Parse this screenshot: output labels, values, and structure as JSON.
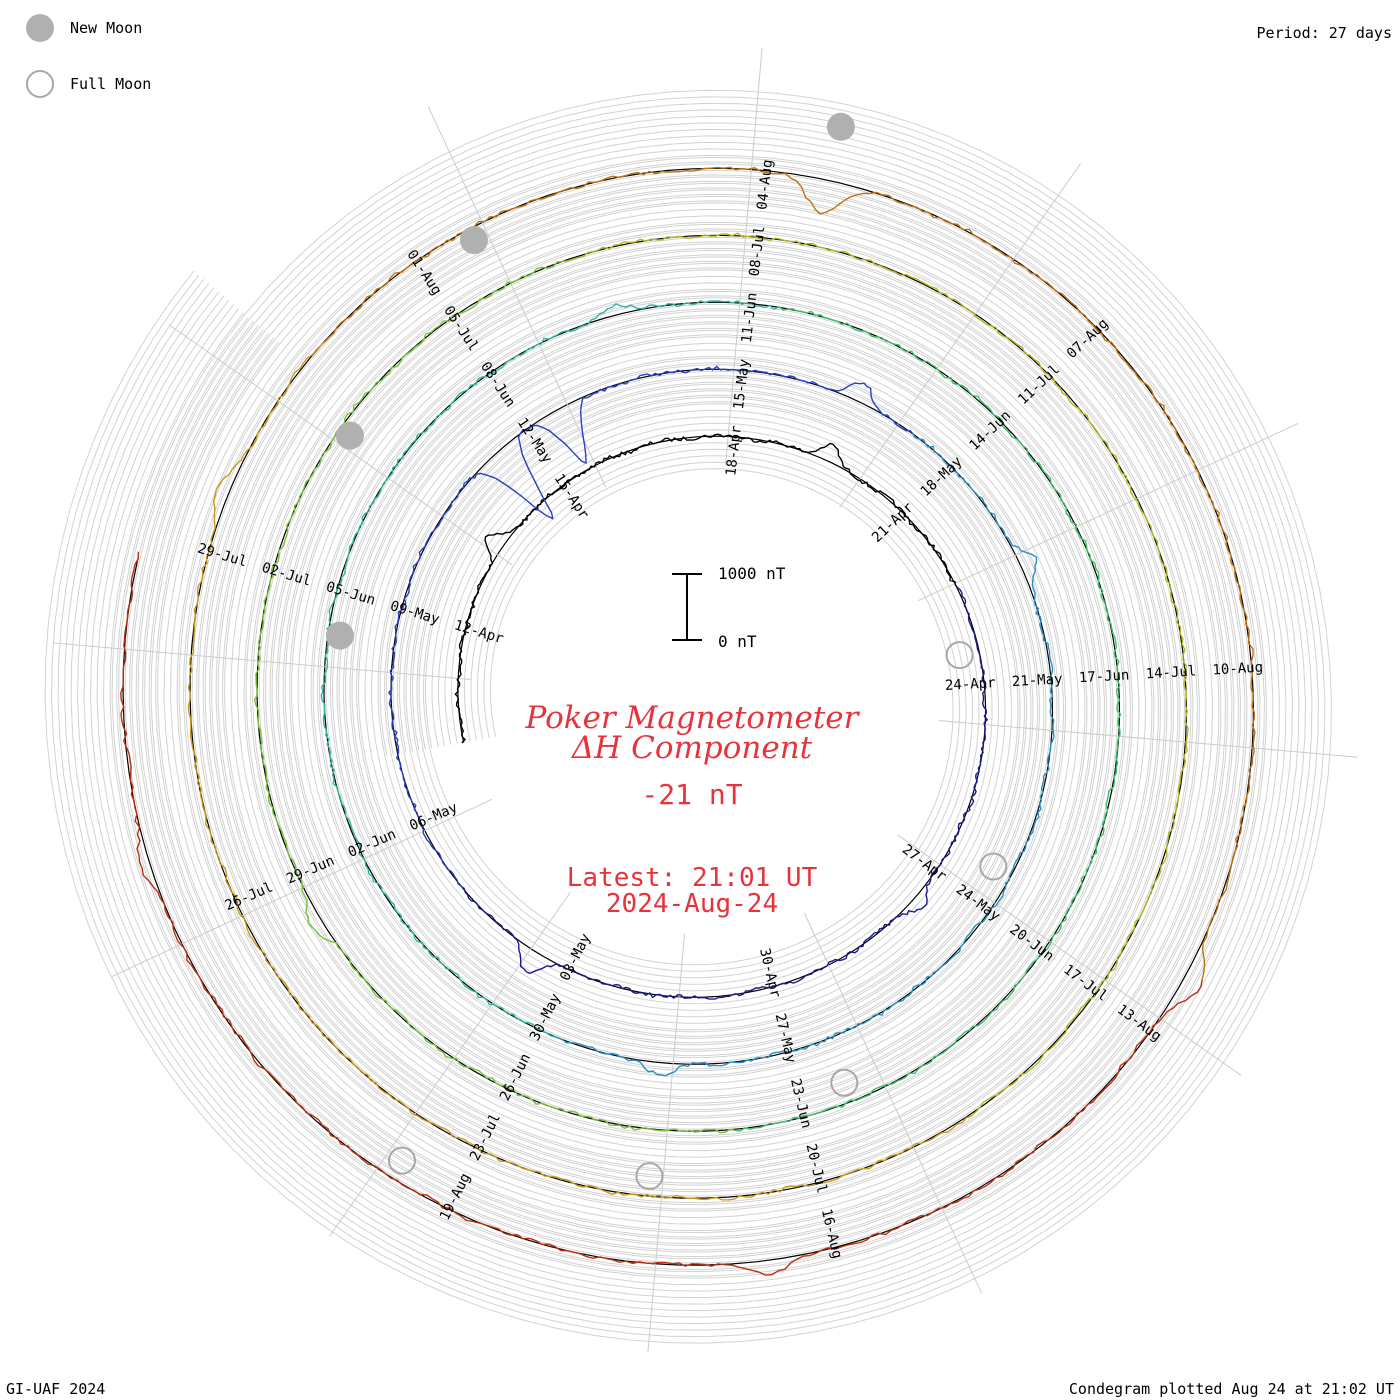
{
  "legend": {
    "new_moon": {
      "label": "New Moon",
      "color": "#b0b0b0"
    },
    "full_moon": {
      "label": "Full Moon",
      "color": "#a8a8a8"
    }
  },
  "period_label": "Period: 27 days",
  "footer_left": "GI-UAF 2024",
  "footer_right": "Condegram plotted Aug 24 at 21:02 UT",
  "chart_data": {
    "type": "condegram",
    "title_line1": "Poker Magnetometer",
    "title_line2": "ΔH Component",
    "current_value": "-21 nT",
    "latest_line1": "Latest: 21:01 UT",
    "latest_line2": "2024-Aug-24",
    "scale_bar": {
      "top_label": "1000 nT",
      "bottom_label": "0 nT",
      "top_value": 1000,
      "bottom_value": 0
    },
    "period_days": 27,
    "start_date": "2024-04-10",
    "end_date": "2024-08-24",
    "date_labels": [
      "12-Apr",
      "15-Apr",
      "18-Apr",
      "21-Apr",
      "24-Apr",
      "27-Apr",
      "30-Apr",
      "03-May",
      "06-May",
      "09-May",
      "12-May",
      "15-May",
      "18-May",
      "21-May",
      "24-May",
      "27-May",
      "30-May",
      "02-Jun",
      "05-Jun",
      "08-Jun",
      "11-Jun",
      "14-Jun",
      "17-Jun",
      "20-Jun",
      "23-Jun",
      "26-Jun",
      "29-Jun",
      "02-Jul",
      "05-Jul",
      "08-Jul",
      "11-Jul",
      "14-Jul",
      "17-Jul",
      "20-Jul",
      "23-Jul",
      "26-Jul",
      "29-Jul",
      "01-Aug",
      "04-Aug",
      "07-Aug",
      "10-Aug",
      "13-Aug",
      "16-Aug",
      "19-Aug"
    ],
    "new_moon_dates": [
      "2024-05-08",
      "2024-06-06",
      "2024-07-05",
      "2024-08-04"
    ],
    "full_moon_dates": [
      "2024-04-23",
      "2024-05-23",
      "2024-06-22",
      "2024-07-21",
      "2024-08-19"
    ],
    "disturbances": [
      {
        "date": "2024-04-13",
        "nT": -300
      },
      {
        "date": "2024-04-19",
        "nT": -250
      },
      {
        "date": "2024-04-27",
        "nT": -200
      },
      {
        "date": "2024-05-03",
        "nT": -350
      },
      {
        "date": "2024-05-11",
        "nT": 1300
      },
      {
        "date": "2024-05-12",
        "nT": 900
      },
      {
        "date": "2024-05-16",
        "nT": -300
      },
      {
        "date": "2024-05-19",
        "nT": -250
      },
      {
        "date": "2024-05-28",
        "nT": -200
      },
      {
        "date": "2024-06-09",
        "nT": -150
      },
      {
        "date": "2024-06-28",
        "nT": -200
      },
      {
        "date": "2024-07-29",
        "nT": -200
      },
      {
        "date": "2024-08-04",
        "nT": 500
      },
      {
        "date": "2024-08-12",
        "nT": -300
      },
      {
        "date": "2024-08-16",
        "nT": -200
      },
      {
        "date": "2024-08-22",
        "nT": -150
      }
    ],
    "grid": true
  }
}
